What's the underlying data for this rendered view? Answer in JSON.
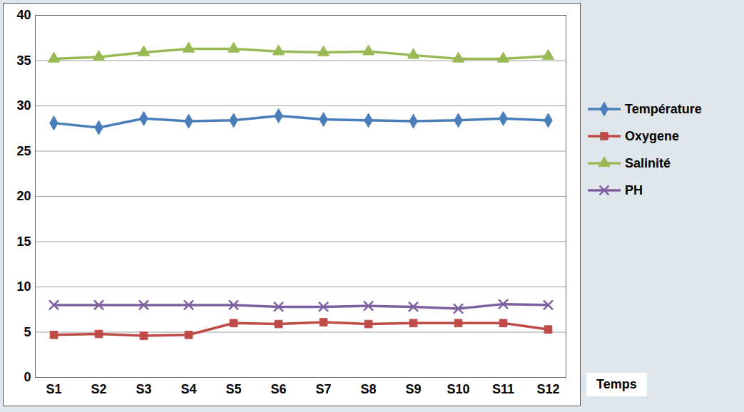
{
  "chart_data": {
    "type": "line",
    "x_label": "Temps",
    "categories": [
      "S1",
      "S2",
      "S3",
      "S4",
      "S5",
      "S6",
      "S7",
      "S8",
      "S9",
      "S10",
      "S11",
      "S12"
    ],
    "series": [
      {
        "name": "Température",
        "color": "#4a7ebb",
        "marker": "diamond",
        "values": [
          28.1,
          27.6,
          28.6,
          28.3,
          28.4,
          28.9,
          28.5,
          28.4,
          28.3,
          28.4,
          28.6,
          28.4
        ]
      },
      {
        "name": "Oxygene",
        "color": "#be4b48",
        "marker": "square",
        "values": [
          4.7,
          4.8,
          4.6,
          4.7,
          6.0,
          5.9,
          6.1,
          5.9,
          6.0,
          6.0,
          6.0,
          5.3
        ]
      },
      {
        "name": "Salinité",
        "color": "#98b954",
        "marker": "triangle",
        "values": [
          35.2,
          35.4,
          35.9,
          36.3,
          36.3,
          36.0,
          35.9,
          36.0,
          35.6,
          35.2,
          35.2,
          35.5
        ]
      },
      {
        "name": "PH",
        "color": "#7d60a0",
        "marker": "x",
        "values": [
          8.0,
          8.0,
          8.0,
          8.0,
          8.0,
          7.8,
          7.8,
          7.9,
          7.8,
          7.6,
          8.1,
          8.0
        ]
      }
    ],
    "ylim": [
      0,
      40
    ],
    "yticks": [
      0,
      5,
      10,
      15,
      20,
      25,
      30,
      35,
      40
    ],
    "grid": true,
    "legend": "right"
  }
}
